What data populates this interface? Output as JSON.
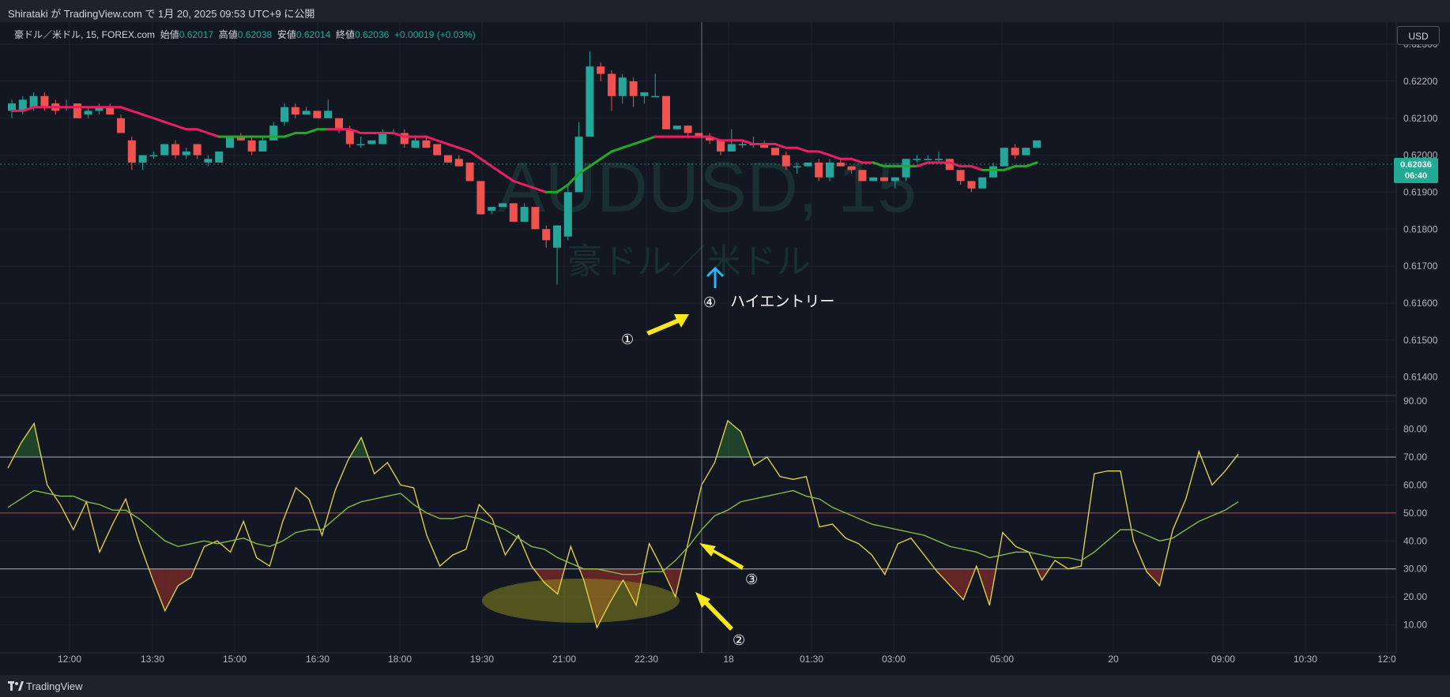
{
  "header": {
    "publish_text": "Shirataki が TradingView.com で 1月 20, 2025 09:53 UTC+9 に公開"
  },
  "legend": {
    "symbol": "豪ドル／米ドル, 15, FOREX.com",
    "open_label": "始値",
    "open": "0.62017",
    "high_label": "高値",
    "high": "0.62038",
    "low_label": "安値",
    "low": "0.62014",
    "close_label": "終値",
    "close": "0.62036",
    "change": "+0.00019 (+0.03%)"
  },
  "currency_button": "USD",
  "current_price": {
    "price": "0.62036",
    "countdown": "06:40"
  },
  "watermark": {
    "ticker": "AUDUSD, 15",
    "name": "豪ドル／米ドル"
  },
  "footer": {
    "brand": "TradingView"
  },
  "colors": {
    "up": "#26a69a",
    "down": "#ef5350",
    "ma_rising": "#22ab22",
    "ma_falling": "#e91e63",
    "rsi": "#e6d84a",
    "rsi_ma": "#8bc34a",
    "annotation": "#f9e71e"
  },
  "chart_data": [
    {
      "type": "candlestick",
      "title": "AUDUSD, 15",
      "ylim": [
        0.6135,
        0.6236
      ],
      "y_ticks": [
        "0.62300",
        "0.62200",
        "0.62100",
        "0.62000",
        "0.61900",
        "0.61800",
        "0.61700",
        "0.61600",
        "0.61500",
        "0.61400"
      ],
      "x_ticks": [
        "12:00",
        "13:30",
        "15:00",
        "16:30",
        "18:00",
        "19:30",
        "21:00",
        "22:30",
        "18",
        "01:30",
        "03:00",
        "05:00",
        "20",
        "09:00",
        "10:30",
        "12:0"
      ],
      "candles": [
        {
          "o": 0.6212,
          "h": 0.6215,
          "l": 0.621,
          "c": 0.6214
        },
        {
          "o": 0.6212,
          "h": 0.6216,
          "l": 0.6211,
          "c": 0.6215
        },
        {
          "o": 0.6213,
          "h": 0.6217,
          "l": 0.6212,
          "c": 0.6216
        },
        {
          "o": 0.6216,
          "h": 0.6217,
          "l": 0.6212,
          "c": 0.6213
        },
        {
          "o": 0.6214,
          "h": 0.6215,
          "l": 0.6211,
          "c": 0.6212
        },
        {
          "o": 0.6213,
          "h": 0.6215,
          "l": 0.6212,
          "c": 0.6213
        },
        {
          "o": 0.6214,
          "h": 0.6214,
          "l": 0.621,
          "c": 0.621
        },
        {
          "o": 0.6211,
          "h": 0.6213,
          "l": 0.621,
          "c": 0.6212
        },
        {
          "o": 0.6212,
          "h": 0.6214,
          "l": 0.6211,
          "c": 0.6213
        },
        {
          "o": 0.6213,
          "h": 0.6214,
          "l": 0.6211,
          "c": 0.6211
        },
        {
          "o": 0.621,
          "h": 0.6211,
          "l": 0.6206,
          "c": 0.6206
        },
        {
          "o": 0.6204,
          "h": 0.6205,
          "l": 0.6196,
          "c": 0.6198
        },
        {
          "o": 0.6198,
          "h": 0.62,
          "l": 0.6196,
          "c": 0.62
        },
        {
          "o": 0.62,
          "h": 0.6201,
          "l": 0.6199,
          "c": 0.62
        },
        {
          "o": 0.62,
          "h": 0.6203,
          "l": 0.62,
          "c": 0.6203
        },
        {
          "o": 0.6203,
          "h": 0.6204,
          "l": 0.6199,
          "c": 0.62
        },
        {
          "o": 0.62,
          "h": 0.6202,
          "l": 0.6199,
          "c": 0.6201
        },
        {
          "o": 0.6203,
          "h": 0.6203,
          "l": 0.6199,
          "c": 0.62
        },
        {
          "o": 0.6198,
          "h": 0.62,
          "l": 0.6197,
          "c": 0.6199
        },
        {
          "o": 0.6198,
          "h": 0.6201,
          "l": 0.6198,
          "c": 0.6201
        },
        {
          "o": 0.6202,
          "h": 0.6205,
          "l": 0.6202,
          "c": 0.6205
        },
        {
          "o": 0.6205,
          "h": 0.6206,
          "l": 0.6204,
          "c": 0.6204
        },
        {
          "o": 0.6204,
          "h": 0.6205,
          "l": 0.62,
          "c": 0.6201
        },
        {
          "o": 0.6201,
          "h": 0.6205,
          "l": 0.6201,
          "c": 0.6204
        },
        {
          "o": 0.6204,
          "h": 0.6209,
          "l": 0.6204,
          "c": 0.6208
        },
        {
          "o": 0.6209,
          "h": 0.6214,
          "l": 0.6208,
          "c": 0.6213
        },
        {
          "o": 0.6213,
          "h": 0.6214,
          "l": 0.621,
          "c": 0.6211
        },
        {
          "o": 0.6211,
          "h": 0.6213,
          "l": 0.6211,
          "c": 0.6212
        },
        {
          "o": 0.6212,
          "h": 0.6212,
          "l": 0.621,
          "c": 0.621
        },
        {
          "o": 0.621,
          "h": 0.6215,
          "l": 0.621,
          "c": 0.6212
        },
        {
          "o": 0.621,
          "h": 0.621,
          "l": 0.6206,
          "c": 0.6207
        },
        {
          "o": 0.6207,
          "h": 0.6208,
          "l": 0.6202,
          "c": 0.6203
        },
        {
          "o": 0.6203,
          "h": 0.6205,
          "l": 0.6202,
          "c": 0.6203
        },
        {
          "o": 0.6203,
          "h": 0.6204,
          "l": 0.6203,
          "c": 0.6204
        },
        {
          "o": 0.6203,
          "h": 0.6207,
          "l": 0.6203,
          "c": 0.6206
        },
        {
          "o": 0.6206,
          "h": 0.6207,
          "l": 0.6206,
          "c": 0.6206
        },
        {
          "o": 0.6206,
          "h": 0.6207,
          "l": 0.6202,
          "c": 0.6203
        },
        {
          "o": 0.6202,
          "h": 0.6205,
          "l": 0.6202,
          "c": 0.6204
        },
        {
          "o": 0.6204,
          "h": 0.6205,
          "l": 0.6202,
          "c": 0.6202
        },
        {
          "o": 0.6203,
          "h": 0.6203,
          "l": 0.62,
          "c": 0.62
        },
        {
          "o": 0.62,
          "h": 0.62,
          "l": 0.6198,
          "c": 0.6198
        },
        {
          "o": 0.6199,
          "h": 0.62,
          "l": 0.6197,
          "c": 0.6197
        },
        {
          "o": 0.6198,
          "h": 0.6198,
          "l": 0.6193,
          "c": 0.6193
        },
        {
          "o": 0.6193,
          "h": 0.6193,
          "l": 0.6184,
          "c": 0.6184
        },
        {
          "o": 0.6185,
          "h": 0.6186,
          "l": 0.6184,
          "c": 0.6186
        },
        {
          "o": 0.6186,
          "h": 0.6187,
          "l": 0.6186,
          "c": 0.6187
        },
        {
          "o": 0.6187,
          "h": 0.6187,
          "l": 0.6182,
          "c": 0.6182
        },
        {
          "o": 0.6182,
          "h": 0.6187,
          "l": 0.6182,
          "c": 0.6186
        },
        {
          "o": 0.6186,
          "h": 0.6186,
          "l": 0.618,
          "c": 0.618
        },
        {
          "o": 0.618,
          "h": 0.6181,
          "l": 0.6175,
          "c": 0.6177
        },
        {
          "o": 0.6175,
          "h": 0.6181,
          "l": 0.6165,
          "c": 0.6181
        },
        {
          "o": 0.6178,
          "h": 0.6192,
          "l": 0.6177,
          "c": 0.619
        },
        {
          "o": 0.619,
          "h": 0.6209,
          "l": 0.619,
          "c": 0.6205
        },
        {
          "o": 0.6205,
          "h": 0.6228,
          "l": 0.6205,
          "c": 0.6224
        },
        {
          "o": 0.6224,
          "h": 0.6225,
          "l": 0.622,
          "c": 0.6222
        },
        {
          "o": 0.6222,
          "h": 0.6223,
          "l": 0.6212,
          "c": 0.6216
        },
        {
          "o": 0.6216,
          "h": 0.6222,
          "l": 0.6214,
          "c": 0.6221
        },
        {
          "o": 0.622,
          "h": 0.6221,
          "l": 0.6213,
          "c": 0.6216
        },
        {
          "o": 0.6216,
          "h": 0.6217,
          "l": 0.6214,
          "c": 0.6217
        },
        {
          "o": 0.6216,
          "h": 0.6222,
          "l": 0.6216,
          "c": 0.6216
        },
        {
          "o": 0.6216,
          "h": 0.6216,
          "l": 0.6207,
          "c": 0.6207
        },
        {
          "o": 0.6207,
          "h": 0.6208,
          "l": 0.6207,
          "c": 0.6208
        },
        {
          "o": 0.6208,
          "h": 0.6208,
          "l": 0.6205,
          "c": 0.6206
        },
        {
          "o": 0.6206,
          "h": 0.6206,
          "l": 0.6205,
          "c": 0.6205
        },
        {
          "o": 0.6205,
          "h": 0.6206,
          "l": 0.6203,
          "c": 0.6204
        },
        {
          "o": 0.6204,
          "h": 0.6204,
          "l": 0.62,
          "c": 0.6201
        },
        {
          "o": 0.6201,
          "h": 0.6207,
          "l": 0.6201,
          "c": 0.6203
        },
        {
          "o": 0.6203,
          "h": 0.6204,
          "l": 0.6202,
          "c": 0.6203
        },
        {
          "o": 0.6203,
          "h": 0.6205,
          "l": 0.6202,
          "c": 0.6203
        },
        {
          "o": 0.6203,
          "h": 0.6204,
          "l": 0.6202,
          "c": 0.6202
        },
        {
          "o": 0.6202,
          "h": 0.6202,
          "l": 0.62,
          "c": 0.62
        },
        {
          "o": 0.62,
          "h": 0.6201,
          "l": 0.6196,
          "c": 0.6197
        },
        {
          "o": 0.6197,
          "h": 0.6198,
          "l": 0.6195,
          "c": 0.6197
        },
        {
          "o": 0.6197,
          "h": 0.6198,
          "l": 0.6197,
          "c": 0.6198
        },
        {
          "o": 0.6198,
          "h": 0.6199,
          "l": 0.6193,
          "c": 0.6194
        },
        {
          "o": 0.6194,
          "h": 0.6199,
          "l": 0.6193,
          "c": 0.6198
        },
        {
          "o": 0.6198,
          "h": 0.6199,
          "l": 0.6197,
          "c": 0.6197
        },
        {
          "o": 0.6197,
          "h": 0.6197,
          "l": 0.6195,
          "c": 0.6196
        },
        {
          "o": 0.6196,
          "h": 0.6196,
          "l": 0.6193,
          "c": 0.6193
        },
        {
          "o": 0.6193,
          "h": 0.6194,
          "l": 0.6193,
          "c": 0.6194
        },
        {
          "o": 0.6194,
          "h": 0.6194,
          "l": 0.6193,
          "c": 0.6193
        },
        {
          "o": 0.6193,
          "h": 0.6194,
          "l": 0.6191,
          "c": 0.6194
        },
        {
          "o": 0.6194,
          "h": 0.6199,
          "l": 0.6193,
          "c": 0.6199
        },
        {
          "o": 0.6199,
          "h": 0.62,
          "l": 0.6198,
          "c": 0.6199
        },
        {
          "o": 0.6199,
          "h": 0.62,
          "l": 0.6199,
          "c": 0.6199
        },
        {
          "o": 0.6199,
          "h": 0.6201,
          "l": 0.6198,
          "c": 0.6199
        },
        {
          "o": 0.6199,
          "h": 0.6199,
          "l": 0.6196,
          "c": 0.6196
        },
        {
          "o": 0.6196,
          "h": 0.6196,
          "l": 0.6192,
          "c": 0.6193
        },
        {
          "o": 0.6193,
          "h": 0.6193,
          "l": 0.619,
          "c": 0.6191
        },
        {
          "o": 0.6191,
          "h": 0.6194,
          "l": 0.6191,
          "c": 0.6194
        },
        {
          "o": 0.6194,
          "h": 0.6198,
          "l": 0.6194,
          "c": 0.6197
        },
        {
          "o": 0.6197,
          "h": 0.6202,
          "l": 0.6197,
          "c": 0.6202
        },
        {
          "o": 0.6202,
          "h": 0.6203,
          "l": 0.6199,
          "c": 0.62
        },
        {
          "o": 0.62,
          "h": 0.6202,
          "l": 0.62,
          "c": 0.6202
        },
        {
          "o": 0.6202,
          "h": 0.6204,
          "l": 0.6202,
          "c": 0.6204
        }
      ],
      "ma": [
        0.6212,
        0.6212,
        0.6213,
        0.6213,
        0.6213,
        0.6213,
        0.6213,
        0.6213,
        0.6213,
        0.6213,
        0.6213,
        0.6212,
        0.6211,
        0.621,
        0.6209,
        0.6208,
        0.6207,
        0.6207,
        0.6206,
        0.6205,
        0.6205,
        0.6205,
        0.6205,
        0.6205,
        0.6205,
        0.6205,
        0.6206,
        0.6206,
        0.6207,
        0.6207,
        0.6207,
        0.6207,
        0.6206,
        0.6206,
        0.6206,
        0.6206,
        0.6205,
        0.6205,
        0.6205,
        0.6204,
        0.6203,
        0.6202,
        0.6201,
        0.6199,
        0.6197,
        0.6195,
        0.6193,
        0.6192,
        0.6191,
        0.619,
        0.619,
        0.6192,
        0.6195,
        0.6197,
        0.6199,
        0.6201,
        0.6202,
        0.6203,
        0.6204,
        0.6205,
        0.6205,
        0.6205,
        0.6205,
        0.6205,
        0.6205,
        0.6204,
        0.6204,
        0.6204,
        0.6203,
        0.6203,
        0.6203,
        0.6202,
        0.6202,
        0.6201,
        0.6201,
        0.62,
        0.6199,
        0.6199,
        0.6198,
        0.6198,
        0.6197,
        0.6197,
        0.6197,
        0.6197,
        0.6198,
        0.6198,
        0.6198,
        0.6197,
        0.6197,
        0.6196,
        0.6196,
        0.6196,
        0.6197,
        0.6197,
        0.6198
      ],
      "ma_trend": [
        "down",
        "down",
        "down",
        "down",
        "down",
        "down",
        "down",
        "down",
        "down",
        "down",
        "down",
        "down",
        "down",
        "down",
        "down",
        "down",
        "down",
        "down",
        "down",
        "down",
        "up",
        "up",
        "up",
        "up",
        "up",
        "up",
        "up",
        "up",
        "up",
        "up",
        "down",
        "down",
        "down",
        "down",
        "down",
        "down",
        "down",
        "down",
        "down",
        "down",
        "down",
        "down",
        "down",
        "down",
        "down",
        "down",
        "down",
        "down",
        "down",
        "down",
        "up",
        "up",
        "up",
        "up",
        "up",
        "up",
        "up",
        "up",
        "up",
        "up",
        "down",
        "down",
        "down",
        "down",
        "down",
        "down",
        "down",
        "down",
        "down",
        "down",
        "down",
        "down",
        "down",
        "down",
        "down",
        "down",
        "down",
        "down",
        "down",
        "down",
        "up",
        "up",
        "up",
        "up",
        "down",
        "down",
        "down",
        "down",
        "down",
        "down",
        "up",
        "up",
        "up",
        "up",
        "up"
      ],
      "last_price": 0.62036
    },
    {
      "type": "line",
      "ylim": [
        0,
        92
      ],
      "y_ticks": [
        "90.00",
        "80.00",
        "70.00",
        "60.00",
        "50.00",
        "40.00",
        "30.00",
        "20.00",
        "10.00"
      ],
      "levels": [
        70,
        50,
        30
      ],
      "series": [
        {
          "values": [
            66,
            75,
            82,
            60,
            53,
            44,
            54,
            36,
            46,
            55,
            40,
            27,
            15,
            24,
            27,
            38,
            40,
            36,
            47,
            34,
            31,
            47,
            59,
            55,
            42,
            58,
            69,
            77,
            64,
            68,
            60,
            59,
            42,
            31,
            35,
            37,
            53,
            48,
            35,
            42,
            31,
            25,
            21,
            38,
            26,
            9,
            18,
            26,
            17,
            39,
            30,
            20,
            40,
            60,
            68,
            83,
            79,
            67,
            70,
            63,
            62,
            63,
            45,
            46,
            41,
            39,
            35,
            28,
            39,
            41,
            35,
            29,
            24,
            19,
            31,
            17,
            43,
            38,
            36,
            26,
            33,
            30,
            31,
            64,
            65,
            65,
            40,
            29,
            24,
            44,
            55,
            72,
            60,
            65,
            71
          ]
        },
        {
          "values": [
            52,
            55,
            58,
            57,
            56,
            56,
            54,
            53,
            51,
            51,
            48,
            44,
            40,
            38,
            39,
            40,
            39,
            40,
            41,
            39,
            38,
            40,
            43,
            44,
            44,
            48,
            52,
            54,
            55,
            56,
            57,
            53,
            50,
            48,
            48,
            49,
            48,
            46,
            44,
            41,
            38,
            37,
            34,
            32,
            30,
            30,
            29,
            28,
            28,
            29,
            29,
            33,
            38,
            44,
            49,
            51,
            54,
            55,
            56,
            57,
            58,
            56,
            55,
            52,
            50,
            48,
            46,
            45,
            44,
            43,
            42,
            40,
            38,
            37,
            36,
            34,
            35,
            36,
            36,
            35,
            34,
            34,
            33,
            36,
            40,
            44,
            44,
            42,
            40,
            41,
            44,
            47,
            49,
            51,
            54
          ]
        }
      ]
    }
  ],
  "annotations": {
    "a1": "①",
    "a2": "②",
    "a3": "③",
    "a4": "④",
    "entry": "ハイエントリー"
  }
}
